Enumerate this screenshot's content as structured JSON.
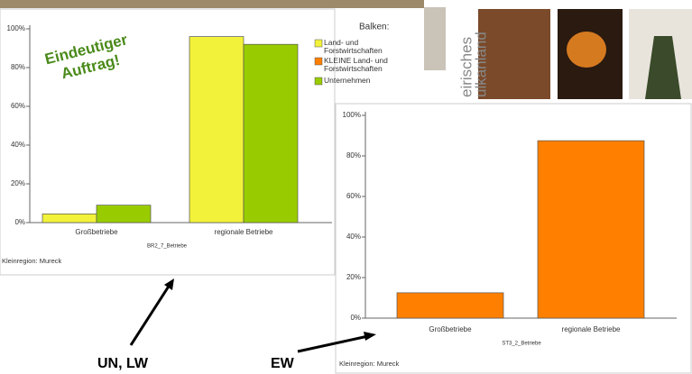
{
  "chart_data": [
    {
      "type": "bar",
      "categories": [
        "Großbetriebe",
        "regionale Betriebe"
      ],
      "series": [
        {
          "name": "Land- und Forstwirtschaften",
          "color": "#f2f23a",
          "values": [
            4.5,
            96
          ]
        },
        {
          "name": "KLEINE Land- und Forstwirtschaften",
          "color": "#ff8000",
          "values": [
            null,
            null
          ]
        },
        {
          "name": "Unternehmen",
          "color": "#99cc00",
          "values": [
            9,
            92
          ]
        }
      ],
      "legend_title": "Balken:",
      "xlabel": "BR2_7_Betriebe",
      "note": "Kleinregion: Mureck",
      "ylim": [
        0,
        100
      ],
      "yticks": [
        {
          "value": 0,
          "label": "0%"
        },
        {
          "value": 20,
          "label": "20%"
        },
        {
          "value": 40,
          "label": "40%"
        },
        {
          "value": 60,
          "label": "60%"
        },
        {
          "value": 80,
          "label": "80%"
        },
        {
          "value": 100,
          "label": "100%"
        }
      ],
      "annotation": "Eindeutiger Auftrag!"
    },
    {
      "type": "bar",
      "categories": [
        "Großbetriebe",
        "regionale Betriebe"
      ],
      "values": [
        12.5,
        87.5
      ],
      "color": "#ff8000",
      "xlabel": "ST3_2_Betriebe",
      "note": "Kleinregion: Mureck",
      "ylim": [
        0,
        100
      ],
      "yticks": [
        {
          "value": 0,
          "label": "0%"
        },
        {
          "value": 20,
          "label": "20%"
        },
        {
          "value": 40,
          "label": "40%"
        },
        {
          "value": 60,
          "label": "60%"
        },
        {
          "value": 80,
          "label": "80%"
        },
        {
          "value": 100,
          "label": "100%"
        }
      ]
    }
  ],
  "callouts": [
    "UN, LW",
    "EW"
  ],
  "photo_caption": [
    "eirisches",
    "ulkanland"
  ]
}
